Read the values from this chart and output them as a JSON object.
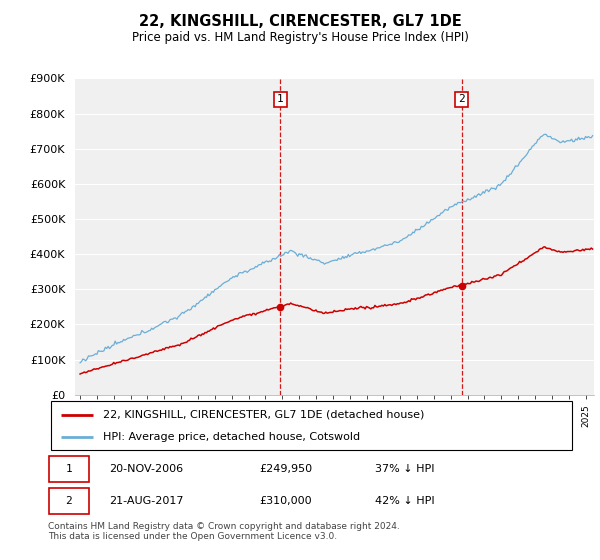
{
  "title": "22, KINGSHILL, CIRENCESTER, GL7 1DE",
  "subtitle": "Price paid vs. HM Land Registry's House Price Index (HPI)",
  "legend_line1": "22, KINGSHILL, CIRENCESTER, GL7 1DE (detached house)",
  "legend_line2": "HPI: Average price, detached house, Cotswold",
  "annotation1_label": "1",
  "annotation1_date": "20-NOV-2006",
  "annotation1_price": "£249,950",
  "annotation1_hpi": "37% ↓ HPI",
  "annotation2_label": "2",
  "annotation2_date": "21-AUG-2017",
  "annotation2_price": "£310,000",
  "annotation2_hpi": "42% ↓ HPI",
  "footer": "Contains HM Land Registry data © Crown copyright and database right 2024.\nThis data is licensed under the Open Government Licence v3.0.",
  "hpi_color": "#6baed6",
  "price_color": "#cc0000",
  "annotation_color": "#cc0000",
  "bg_color": "#f0f0f0",
  "ylim": [
    0,
    900000
  ],
  "yticks": [
    0,
    100000,
    200000,
    300000,
    400000,
    500000,
    600000,
    700000,
    800000,
    900000
  ],
  "purchase1_x": 2006.89,
  "purchase1_y": 249950,
  "purchase2_x": 2017.64,
  "purchase2_y": 310000,
  "xmin": 1995,
  "xmax": 2025
}
